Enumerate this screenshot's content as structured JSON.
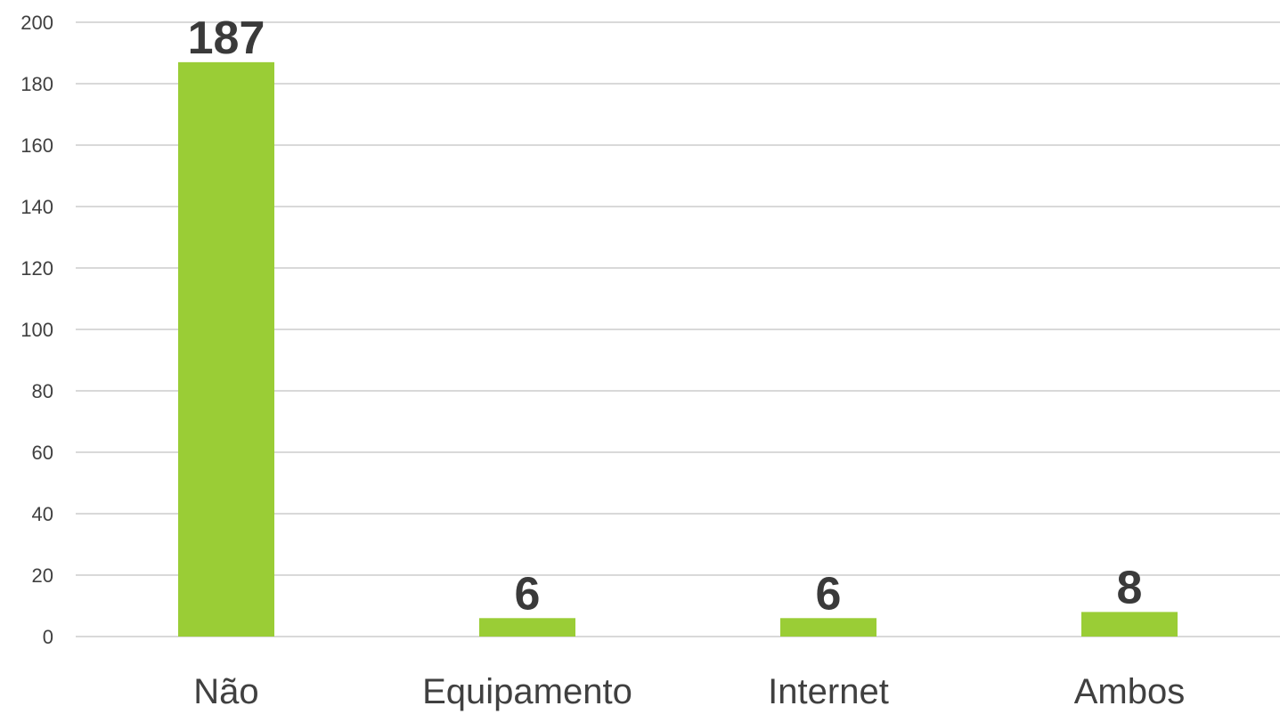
{
  "chart_data": {
    "type": "bar",
    "categories": [
      "Não",
      "Equipamento",
      "Internet",
      "Ambos"
    ],
    "values": [
      187,
      6,
      6,
      8
    ],
    "data_labels": [
      "187",
      "6",
      "6",
      "8"
    ],
    "title": "",
    "xlabel": "",
    "ylabel": "",
    "ylim": [
      0,
      200
    ],
    "yticks": [
      0,
      20,
      40,
      60,
      80,
      100,
      120,
      140,
      160,
      180,
      200
    ],
    "grid": true,
    "legend": "none",
    "bar_color": "#9ACD36"
  }
}
